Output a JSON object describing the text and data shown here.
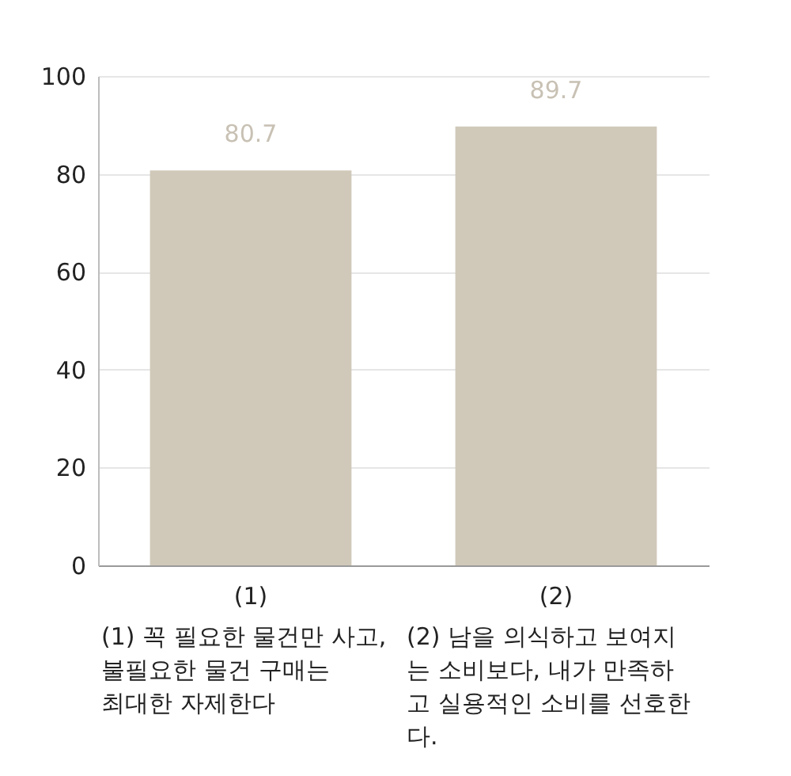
{
  "chart_data": {
    "type": "bar",
    "categories": [
      "(1)",
      "(2)"
    ],
    "values": [
      80.7,
      89.7
    ],
    "color": "#d0c9ba",
    "ylim": [
      0,
      100
    ],
    "yticks": [
      0,
      20,
      40,
      60,
      80,
      100
    ],
    "grid": "y",
    "data_labels": true,
    "annotations": [
      "(1) 꼭 필요한 물건만 사고, 불필요한 물건 구매는 최대한 자제한다",
      "(2) 남을 의식하고 보여지는 소비보다, 내가 만족하고 실용적인 소비를 선호한다."
    ]
  }
}
